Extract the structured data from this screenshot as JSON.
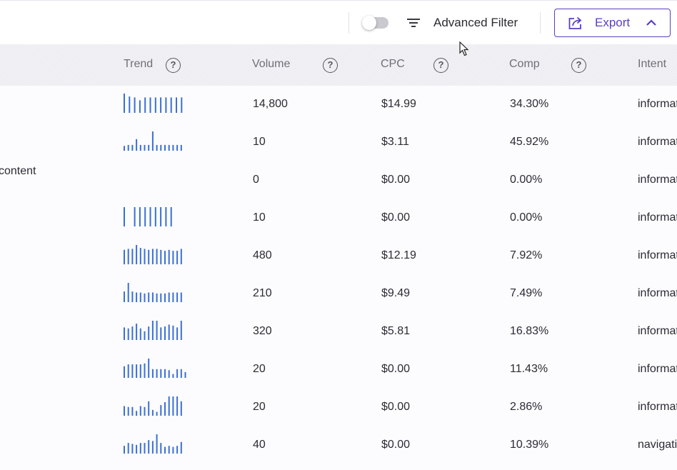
{
  "toolbar": {
    "advanced_filter_label": "Advanced Filter",
    "export_label": "Export",
    "toggle_on": false,
    "filter_icon": "filter-lines-icon",
    "export_icon": "share-export-icon",
    "chevron_icon": "chevron-up-icon",
    "accent_color": "#5a3fc0"
  },
  "table": {
    "columns": [
      {
        "key": "trend",
        "label": "Trend",
        "help": "?"
      },
      {
        "key": "volume",
        "label": "Volume",
        "help": "?"
      },
      {
        "key": "cpc",
        "label": "CPC",
        "help": "?"
      },
      {
        "key": "comp",
        "label": "Comp",
        "help": "?"
      },
      {
        "key": "intent",
        "label": "Intent"
      }
    ],
    "trend_color": "#3b6fd4",
    "rows": [
      {
        "keyword": "",
        "trend": [
          1.0,
          0.85,
          0.8,
          0.65,
          0.8,
          0.8,
          0.8,
          0.8,
          0.8,
          0.8,
          0.8,
          0.8
        ],
        "volume": "14,800",
        "cpc": "$14.99",
        "comp": "34.30%",
        "intent": "informational"
      },
      {
        "keyword": "",
        "trend": [
          0.25,
          0.3,
          0.3,
          0.6,
          0.3,
          0.3,
          0.3,
          1.0,
          0.3,
          0.3,
          0.3,
          0.3,
          0.3,
          0.3,
          0.3
        ],
        "volume": "10",
        "cpc": "$3.11",
        "comp": "45.92%",
        "intent": "informational"
      },
      {
        "keyword": "content",
        "trend": [],
        "volume": "0",
        "cpc": "$0.00",
        "comp": "0.00%",
        "intent": "informational"
      },
      {
        "keyword": "",
        "trend": [
          1.0,
          0.0,
          1.0,
          1.0,
          1.0,
          1.0,
          1.0,
          1.0,
          1.0,
          1.0
        ],
        "volume": "10",
        "cpc": "$0.00",
        "comp": "0.00%",
        "intent": "informational"
      },
      {
        "keyword": "",
        "trend": [
          0.75,
          0.8,
          0.8,
          1.0,
          0.85,
          0.8,
          0.75,
          0.8,
          0.8,
          0.75,
          0.7,
          0.75,
          0.7,
          0.7,
          0.8
        ],
        "volume": "480",
        "cpc": "$12.19",
        "comp": "7.92%",
        "intent": "informational"
      },
      {
        "keyword": "",
        "trend": [
          0.55,
          1.0,
          0.55,
          0.5,
          0.5,
          0.45,
          0.5,
          0.5,
          0.45,
          0.45,
          0.45,
          0.5,
          0.5,
          0.5,
          0.5
        ],
        "volume": "210",
        "cpc": "$9.49",
        "comp": "7.49%",
        "intent": "informational"
      },
      {
        "keyword": "",
        "trend": [
          0.65,
          0.6,
          0.7,
          0.85,
          0.6,
          0.45,
          0.7,
          1.0,
          1.0,
          0.65,
          0.7,
          0.8,
          0.75,
          0.65,
          1.0
        ],
        "volume": "320",
        "cpc": "$5.81",
        "comp": "16.83%",
        "intent": "informational"
      },
      {
        "keyword": "",
        "trend": [
          0.6,
          0.7,
          0.7,
          0.7,
          0.7,
          0.75,
          1.0,
          0.45,
          0.45,
          0.45,
          0.45,
          0.4,
          0.2,
          0.45,
          0.45,
          0.3
        ],
        "volume": "20",
        "cpc": "$0.00",
        "comp": "11.43%",
        "intent": "informational"
      },
      {
        "keyword": "",
        "trend": [
          0.5,
          0.45,
          0.45,
          0.25,
          0.5,
          0.45,
          0.75,
          0.3,
          0.2,
          0.55,
          0.7,
          1.0,
          1.0,
          1.0,
          0.75
        ],
        "volume": "20",
        "cpc": "$0.00",
        "comp": "2.86%",
        "intent": "informational"
      },
      {
        "keyword": "",
        "trend": [
          0.4,
          0.55,
          0.5,
          0.45,
          0.55,
          0.55,
          0.7,
          0.65,
          1.0,
          0.55,
          0.35,
          0.4,
          0.35,
          0.4,
          0.6
        ],
        "volume": "40",
        "cpc": "$0.00",
        "comp": "10.39%",
        "intent": "navigational"
      }
    ]
  }
}
